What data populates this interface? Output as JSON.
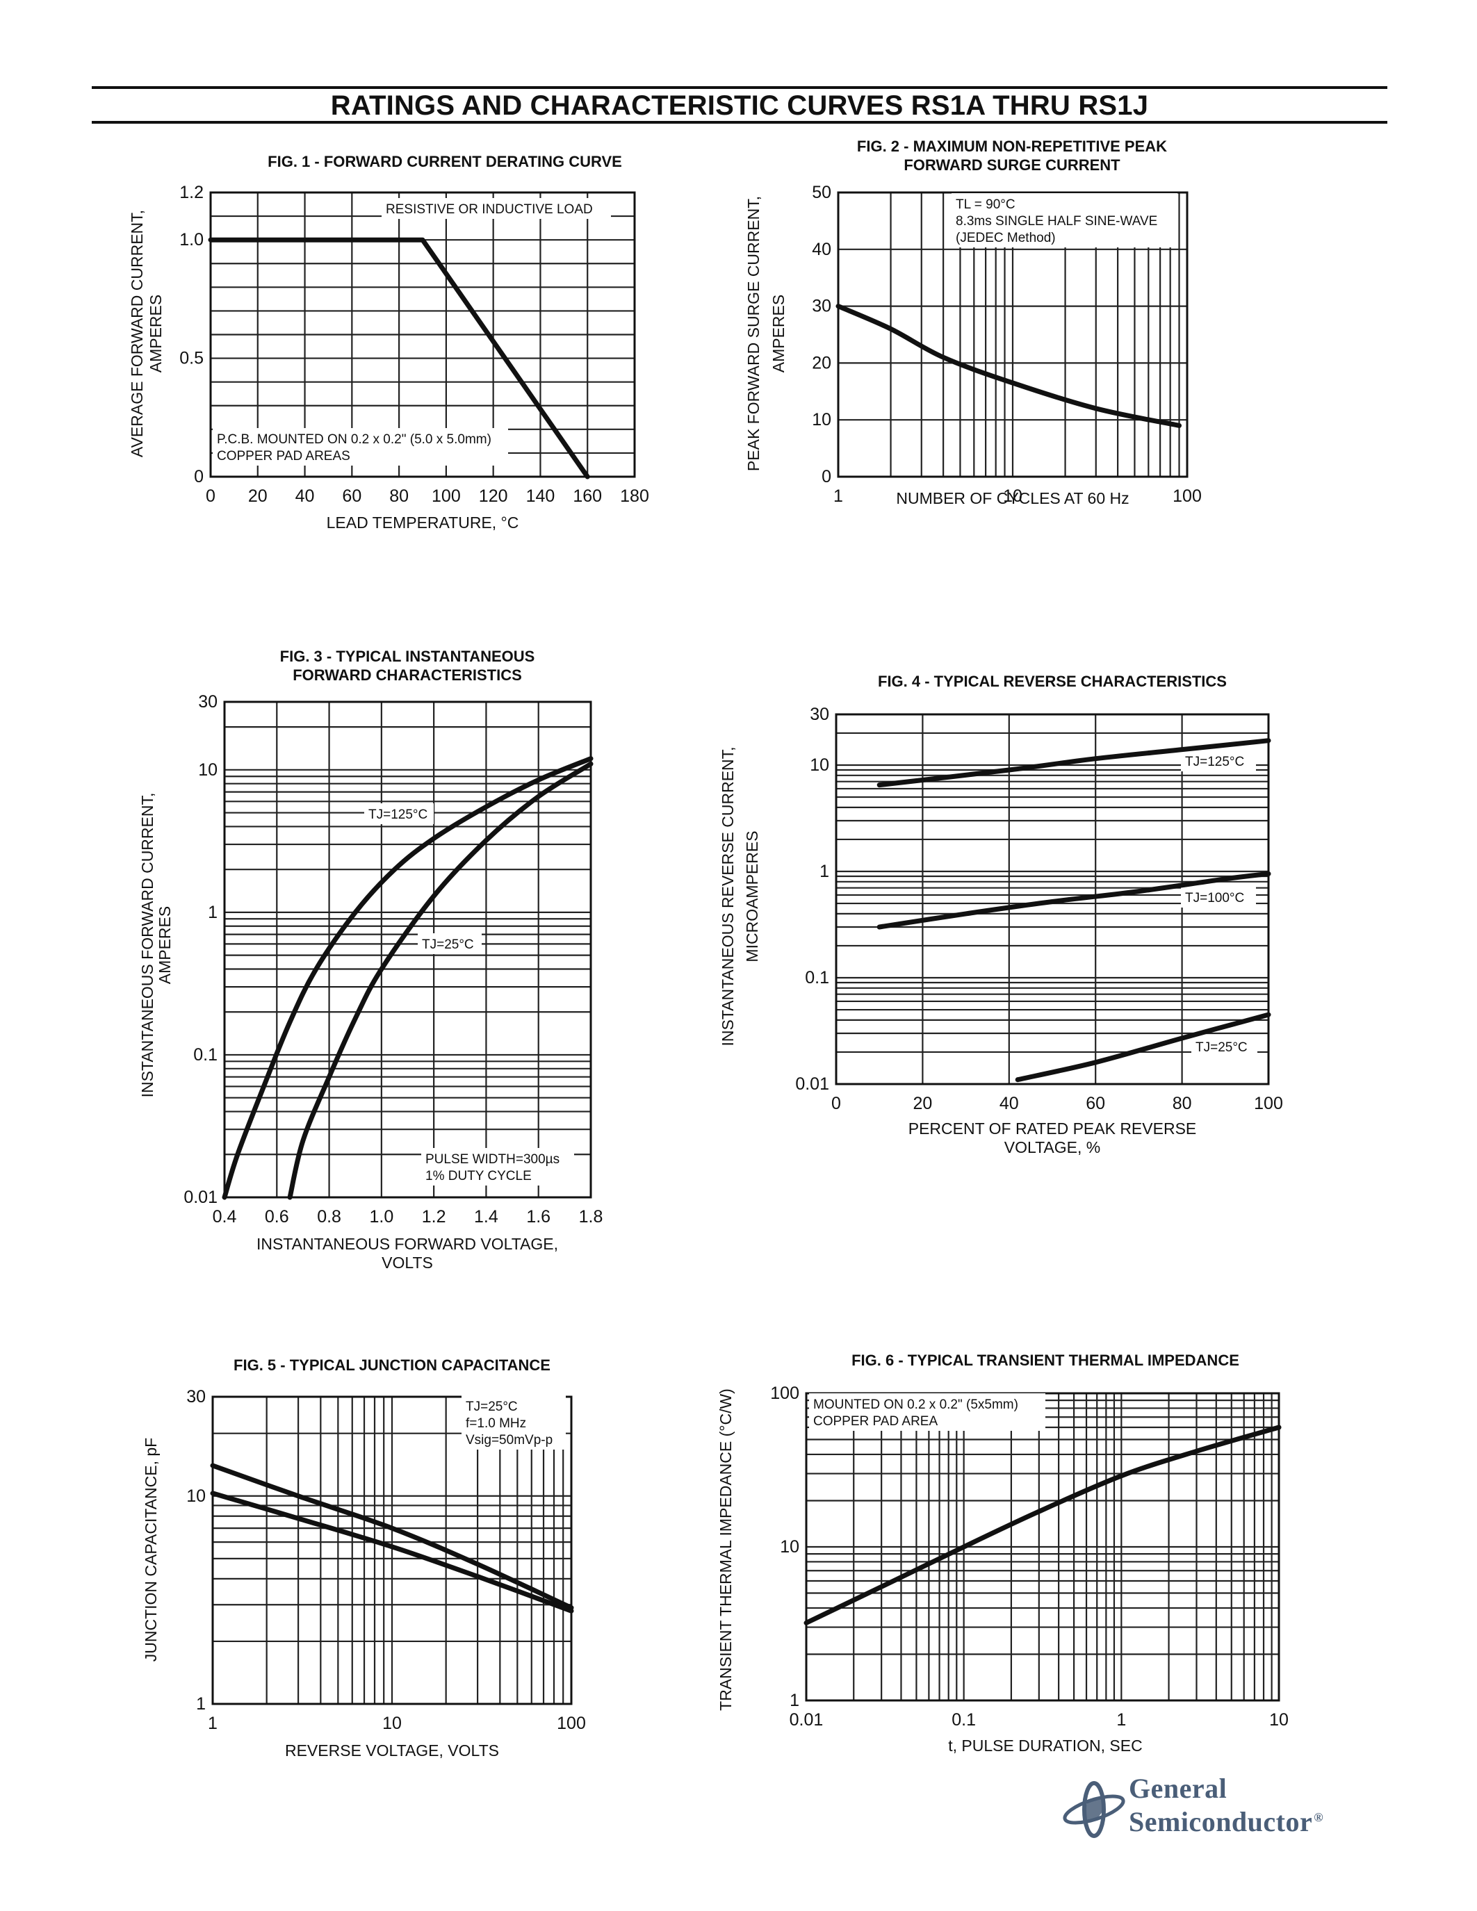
{
  "page": {
    "title": "RATINGS AND CHARACTERISTIC CURVES RS1A THRU RS1J",
    "brand": {
      "line1": "General",
      "line2": "Semiconductor",
      "mark": "®",
      "color": "#4a5e78"
    }
  },
  "chart_data": [
    {
      "id": "fig1",
      "type": "line",
      "title": [
        "FIG. 1 - FORWARD CURRENT DERATING CURVE"
      ],
      "xlabel": [
        "LEAD TEMPERATURE, °C"
      ],
      "ylabel": [
        "AVERAGE FORWARD CURRENT,",
        "AMPERES"
      ],
      "xscale": "linear",
      "yscale": "linear",
      "xlim": [
        0,
        180
      ],
      "ylim": [
        0,
        1.2
      ],
      "xticks": [
        0,
        20,
        40,
        60,
        80,
        100,
        120,
        140,
        160,
        180
      ],
      "xticklabels": [
        "0",
        "20",
        "40",
        "60",
        "80",
        "100",
        "120",
        "140",
        "160",
        "180"
      ],
      "yticks": [
        0,
        0.5,
        1.0,
        1.2
      ],
      "yticklabels": [
        "0",
        "0.5",
        "1.0",
        "1.2"
      ],
      "grid": true,
      "series": [
        {
          "x": [
            0,
            90,
            160
          ],
          "y": [
            1.0,
            1.0,
            0
          ]
        }
      ],
      "annotations": [
        {
          "text": [
            "RESISTIVE OR INDUCTIVE LOAD"
          ],
          "pos": "upper-right"
        },
        {
          "text": [
            "P.C.B. MOUNTED ON 0.2 x 0.2\" (5.0 x 5.0mm)",
            "COPPER PAD AREAS"
          ],
          "pos": "lower-left"
        }
      ]
    },
    {
      "id": "fig2",
      "type": "line",
      "title": [
        "FIG. 2 - MAXIMUM NON-REPETITIVE PEAK",
        "FORWARD SURGE CURRENT"
      ],
      "xlabel": [
        "NUMBER OF CYCLES AT 60 Hz"
      ],
      "ylabel": [
        "PEAK FORWARD SURGE CURRENT,",
        "AMPERES"
      ],
      "xscale": "log",
      "yscale": "linear",
      "xlim": [
        1,
        100
      ],
      "ylim": [
        0,
        50
      ],
      "xticks": [
        1,
        10,
        100
      ],
      "xticklabels": [
        "1",
        "10",
        "100"
      ],
      "yticks": [
        0,
        10,
        20,
        30,
        40,
        50
      ],
      "yticklabels": [
        "0",
        "10",
        "20",
        "30",
        "40",
        "50"
      ],
      "grid": true,
      "series": [
        {
          "x": [
            1,
            2,
            4,
            10,
            30,
            90
          ],
          "y": [
            30,
            26,
            21,
            16.5,
            12,
            9
          ]
        }
      ],
      "annotations": [
        {
          "text": [
            "TL = 90°C",
            "8.3ms SINGLE HALF SINE-WAVE",
            "(JEDEC Method)"
          ],
          "pos": "upper-right"
        }
      ]
    },
    {
      "id": "fig3",
      "type": "line",
      "title": [
        "FIG. 3 - TYPICAL INSTANTANEOUS",
        "FORWARD CHARACTERISTICS"
      ],
      "xlabel": [
        "INSTANTANEOUS FORWARD VOLTAGE,",
        "VOLTS"
      ],
      "ylabel": [
        "INSTANTANEOUS FORWARD CURRENT,",
        "AMPERES"
      ],
      "xscale": "linear",
      "yscale": "log",
      "xlim": [
        0.4,
        1.8
      ],
      "ylim": [
        0.01,
        30
      ],
      "xticks": [
        0.4,
        0.6,
        0.8,
        1.0,
        1.2,
        1.4,
        1.6,
        1.8
      ],
      "xticklabels": [
        "0.4",
        "0.6",
        "0.8",
        "1.0",
        "1.2",
        "1.4",
        "1.6",
        "1.8"
      ],
      "yticks": [
        0.01,
        0.1,
        1,
        10,
        30
      ],
      "yticklabels": [
        "0.01",
        "0.1",
        "1",
        "10",
        "30"
      ],
      "grid": true,
      "series": [
        {
          "name": "TJ=125°C",
          "x": [
            0.4,
            0.45,
            0.55,
            0.65,
            0.75,
            0.9,
            1.05,
            1.2,
            1.4,
            1.6,
            1.8
          ],
          "y": [
            0.01,
            0.02,
            0.06,
            0.17,
            0.4,
            1.0,
            2.0,
            3.3,
            5.5,
            8.5,
            12
          ]
        },
        {
          "name": "TJ=25°C",
          "x": [
            0.65,
            0.7,
            0.8,
            0.9,
            1.0,
            1.2,
            1.4,
            1.6,
            1.8
          ],
          "y": [
            0.01,
            0.025,
            0.07,
            0.18,
            0.4,
            1.3,
            3.2,
            6.5,
            11
          ]
        }
      ],
      "annotations": [
        {
          "text": [
            "TJ=125°C"
          ],
          "pos": "label-series-1"
        },
        {
          "text": [
            "TJ=25°C"
          ],
          "pos": "label-series-2"
        },
        {
          "text": [
            "PULSE WIDTH=300µs",
            "1% DUTY CYCLE"
          ],
          "pos": "lower-right"
        }
      ]
    },
    {
      "id": "fig4",
      "type": "line",
      "title": [
        "FIG. 4 - TYPICAL REVERSE CHARACTERISTICS"
      ],
      "xlabel": [
        "PERCENT OF RATED PEAK REVERSE",
        "VOLTAGE, %"
      ],
      "ylabel": [
        "INSTANTANEOUS REVERSE CURRENT,",
        "MICROAMPERES"
      ],
      "xscale": "linear",
      "yscale": "log",
      "xlim": [
        0,
        100
      ],
      "ylim": [
        0.01,
        30
      ],
      "xticks": [
        0,
        20,
        40,
        60,
        80,
        100
      ],
      "xticklabels": [
        "0",
        "20",
        "40",
        "60",
        "80",
        "100"
      ],
      "yticks": [
        0.01,
        0.1,
        1,
        10,
        30
      ],
      "yticklabels": [
        "0.01",
        "0.1",
        "1",
        "10",
        "30"
      ],
      "grid": true,
      "series": [
        {
          "name": "TJ=125°C",
          "x": [
            10,
            40,
            60,
            80,
            100
          ],
          "y": [
            6.5,
            9.0,
            11.5,
            14.0,
            17.0
          ]
        },
        {
          "name": "TJ=100°C",
          "x": [
            10,
            30,
            50,
            70,
            90,
            100
          ],
          "y": [
            0.3,
            0.4,
            0.52,
            0.65,
            0.85,
            0.95
          ]
        },
        {
          "name": "TJ=25°C",
          "x": [
            42,
            60,
            80,
            100
          ],
          "y": [
            0.011,
            0.016,
            0.027,
            0.045
          ]
        }
      ],
      "annotations": [
        {
          "text": [
            "TJ=125°C"
          ],
          "pos": "label-series-1"
        },
        {
          "text": [
            "TJ=100°C"
          ],
          "pos": "label-series-2"
        },
        {
          "text": [
            "TJ=25°C"
          ],
          "pos": "label-series-3"
        }
      ]
    },
    {
      "id": "fig5",
      "type": "line",
      "title": [
        "FIG. 5 - TYPICAL JUNCTION CAPACITANCE"
      ],
      "xlabel": [
        "REVERSE VOLTAGE, VOLTS"
      ],
      "ylabel": [
        "JUNCTION CAPACITANCE, pF"
      ],
      "xscale": "log",
      "yscale": "log",
      "xlim": [
        1,
        100
      ],
      "ylim": [
        1,
        30
      ],
      "xticks": [
        1,
        10,
        100
      ],
      "xticklabels": [
        "1",
        "10",
        "100"
      ],
      "yticks": [
        1,
        10,
        30
      ],
      "yticklabels": [
        "1",
        "10",
        "30"
      ],
      "grid": true,
      "series": [
        {
          "x": [
            1,
            3,
            10,
            30,
            100
          ],
          "y": [
            14,
            10,
            7,
            4.7,
            2.9
          ]
        },
        {
          "x": [
            1,
            3,
            10,
            30,
            100
          ],
          "y": [
            10.3,
            7.8,
            5.7,
            4.1,
            2.8
          ]
        }
      ],
      "annotations": [
        {
          "text": [
            "TJ=25°C",
            "f=1.0 MHz",
            "Vsig=50mVp-p"
          ],
          "pos": "upper-right"
        }
      ]
    },
    {
      "id": "fig6",
      "type": "line",
      "title": [
        "FIG. 6 - TYPICAL TRANSIENT THERMAL IMPEDANCE"
      ],
      "xlabel": [
        "t, PULSE DURATION, SEC"
      ],
      "ylabel": [
        "TRANSIENT THERMAL IMPEDANCE (°C/W)"
      ],
      "xscale": "log",
      "yscale": "log",
      "xlim": [
        0.01,
        10
      ],
      "ylim": [
        1,
        100
      ],
      "xticks": [
        0.01,
        0.1,
        1,
        10
      ],
      "xticklabels": [
        "0.01",
        "0.1",
        "1",
        "10"
      ],
      "yticks": [
        1,
        10,
        100
      ],
      "yticklabels": [
        "1",
        "10",
        "100"
      ],
      "grid": true,
      "series": [
        {
          "x": [
            0.01,
            0.03,
            0.1,
            0.3,
            1,
            3,
            10
          ],
          "y": [
            3.2,
            5.5,
            10,
            17,
            29,
            42,
            60
          ]
        }
      ],
      "annotations": [
        {
          "text": [
            "MOUNTED ON 0.2 x 0.2\" (5x5mm)",
            "COPPER PAD AREA"
          ],
          "pos": "upper-left"
        }
      ]
    }
  ]
}
